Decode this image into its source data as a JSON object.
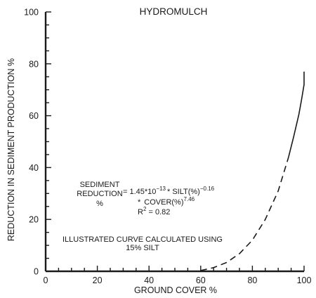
{
  "chart_data": {
    "type": "line",
    "title": "HYDROMULCH",
    "xlabel": "GROUND COVER %",
    "ylabel": "REDUCTION IN SEDIMENT PRODUCTION %",
    "xlim": [
      0,
      100
    ],
    "ylim": [
      0,
      100
    ],
    "x_ticks": [
      "0",
      "20",
      "40",
      "60",
      "80",
      "100"
    ],
    "y_ticks": [
      "0",
      "20",
      "40",
      "60",
      "80",
      "100"
    ],
    "grid": false,
    "series": [
      {
        "style": "dashed",
        "x": [
          60,
          65,
          70,
          75,
          80,
          85,
          90,
          94
        ],
        "y": [
          0.3,
          1.4,
          3.4,
          6.8,
          12.0,
          20.0,
          31.0,
          44.0
        ]
      },
      {
        "style": "solid",
        "x": [
          94,
          96,
          98,
          99,
          100,
          100
        ],
        "y": [
          44.0,
          52.0,
          60.5,
          66.0,
          72.0,
          77.0
        ]
      }
    ],
    "annotations": {
      "sediment_line1": "SEDIMENT",
      "sediment_line2": "REDUCTION",
      "sediment_line3": "%",
      "eq_main": "= 1.45*10",
      "eq_exp1": "−13",
      "eq_silt": "* SILT(%)",
      "eq_exp2": "−0.16",
      "eq_cover_prefix": "*",
      "eq_cover": "COVER(%)",
      "eq_exp3": "7.46",
      "r2_r": "R",
      "r2_sup": "2",
      "r2_value": " = 0.82",
      "note_line1": "ILLUSTRATED CURVE CALCULATED USING",
      "note_line2": "15% SILT"
    }
  }
}
